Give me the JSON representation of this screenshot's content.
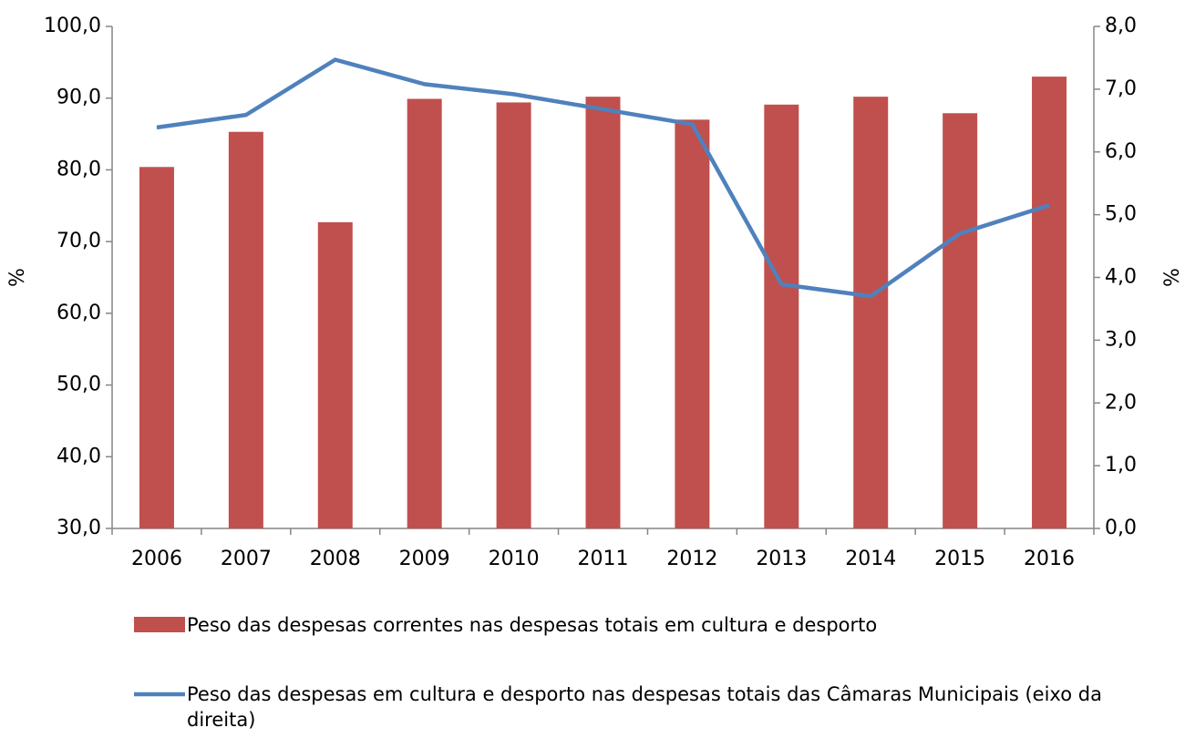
{
  "chart_data": {
    "type": "bar_line",
    "categories": [
      "2006",
      "2007",
      "2008",
      "2009",
      "2010",
      "2011",
      "2012",
      "2013",
      "2014",
      "2015",
      "2016"
    ],
    "series": [
      {
        "name": "Peso das despesas correntes nas despesas totais em cultura e desporto",
        "type": "bar",
        "color": "#c0504d",
        "values": [
          80.4,
          85.3,
          72.7,
          89.9,
          89.4,
          90.2,
          87.0,
          89.1,
          90.2,
          87.9,
          93.0
        ]
      },
      {
        "name": "Peso das despesas em cultura e desporto nas despesas totais das Câmaras Municipais (eixo da direita)",
        "type": "line",
        "color": "#4f81bd",
        "axis": "y2",
        "values": [
          6.39,
          6.59,
          7.47,
          7.08,
          6.92,
          6.68,
          6.44,
          3.89,
          3.7,
          4.7,
          5.15
        ]
      }
    ],
    "ylabel": "%",
    "y2label": "%",
    "ylim": [
      30,
      100
    ],
    "yticks": [
      {
        "value": 30,
        "label": "30,0"
      },
      {
        "value": 40,
        "label": "40,0"
      },
      {
        "value": 50,
        "label": "50,0"
      },
      {
        "value": 60,
        "label": "60,0"
      },
      {
        "value": 70,
        "label": "70,0"
      },
      {
        "value": 80,
        "label": "80,0"
      },
      {
        "value": 90,
        "label": "90,0"
      },
      {
        "value": 100,
        "label": "100,0"
      }
    ],
    "y2lim": [
      0,
      8
    ],
    "y2ticks": [
      {
        "value": 0,
        "label": "0,0"
      },
      {
        "value": 1,
        "label": "1,0"
      },
      {
        "value": 2,
        "label": "2,0"
      },
      {
        "value": 3,
        "label": "3,0"
      },
      {
        "value": 4,
        "label": "4,0"
      },
      {
        "value": 5,
        "label": "5,0"
      },
      {
        "value": 6,
        "label": "6,0"
      },
      {
        "value": 7,
        "label": "7,0"
      },
      {
        "value": 8,
        "label": "8,0"
      }
    ],
    "grid": false
  }
}
